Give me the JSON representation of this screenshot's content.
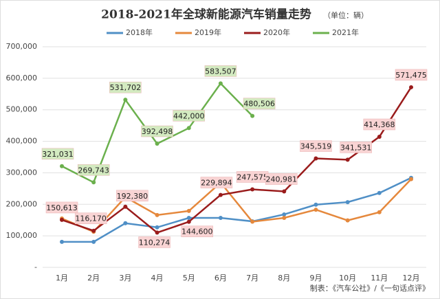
{
  "chart_data": {
    "type": "line",
    "title": "2018-2021年全球新能源汽车销量走势",
    "subtitle": "（单位：辆）",
    "source": "制表：《汽车公社》/《一句话点评》",
    "categories": [
      "1月",
      "2月",
      "3月",
      "4月",
      "5月",
      "6月",
      "7月",
      "8月",
      "9月",
      "10月",
      "11月",
      "12月"
    ],
    "series": [
      {
        "name": "2018年",
        "color": "#4f8fc6",
        "values": [
          81000,
          81000,
          140000,
          127000,
          157000,
          157000,
          146000,
          168000,
          199000,
          207000,
          236000,
          284000
        ]
      },
      {
        "name": "2019年",
        "color": "#e5883c",
        "values": [
          155000,
          113000,
          223000,
          166000,
          179000,
          269000,
          145000,
          157000,
          183000,
          149000,
          175000,
          280000
        ]
      },
      {
        "name": "2020年",
        "color": "#9a1c1c",
        "values": [
          150613,
          116170,
          192380,
          110274,
          144600,
          229894,
          247575,
          240981,
          345519,
          341531,
          414368,
          571475
        ],
        "value_labels": [
          "150,613",
          "116,170",
          "192,380",
          "110,274",
          "144,600",
          "229,894",
          "247,575",
          "240,981",
          "345,519",
          "341,531",
          "414,368",
          "571,475"
        ]
      },
      {
        "name": "2021年",
        "color": "#6bb04d",
        "values": [
          321031,
          269743,
          531702,
          392498,
          442000,
          583507,
          480506,
          null,
          null,
          null,
          null,
          null
        ],
        "value_labels": [
          "321,031",
          "269,743",
          "531,702",
          "392,498",
          "442,000",
          "583,507",
          "480,506",
          null,
          null,
          null,
          null,
          null
        ]
      }
    ],
    "ylim": [
      0,
      700000
    ],
    "yticks": [
      {
        "value": 0,
        "label": "-"
      },
      {
        "value": 100000,
        "label": "100,000"
      },
      {
        "value": 200000,
        "label": "200,000"
      },
      {
        "value": 300000,
        "label": "300,000"
      },
      {
        "value": 400000,
        "label": "400,000"
      },
      {
        "value": 500000,
        "label": "500,000"
      },
      {
        "value": 600000,
        "label": "600,000"
      },
      {
        "value": 700000,
        "label": "700,000"
      }
    ],
    "grid": true,
    "legend": "top"
  }
}
